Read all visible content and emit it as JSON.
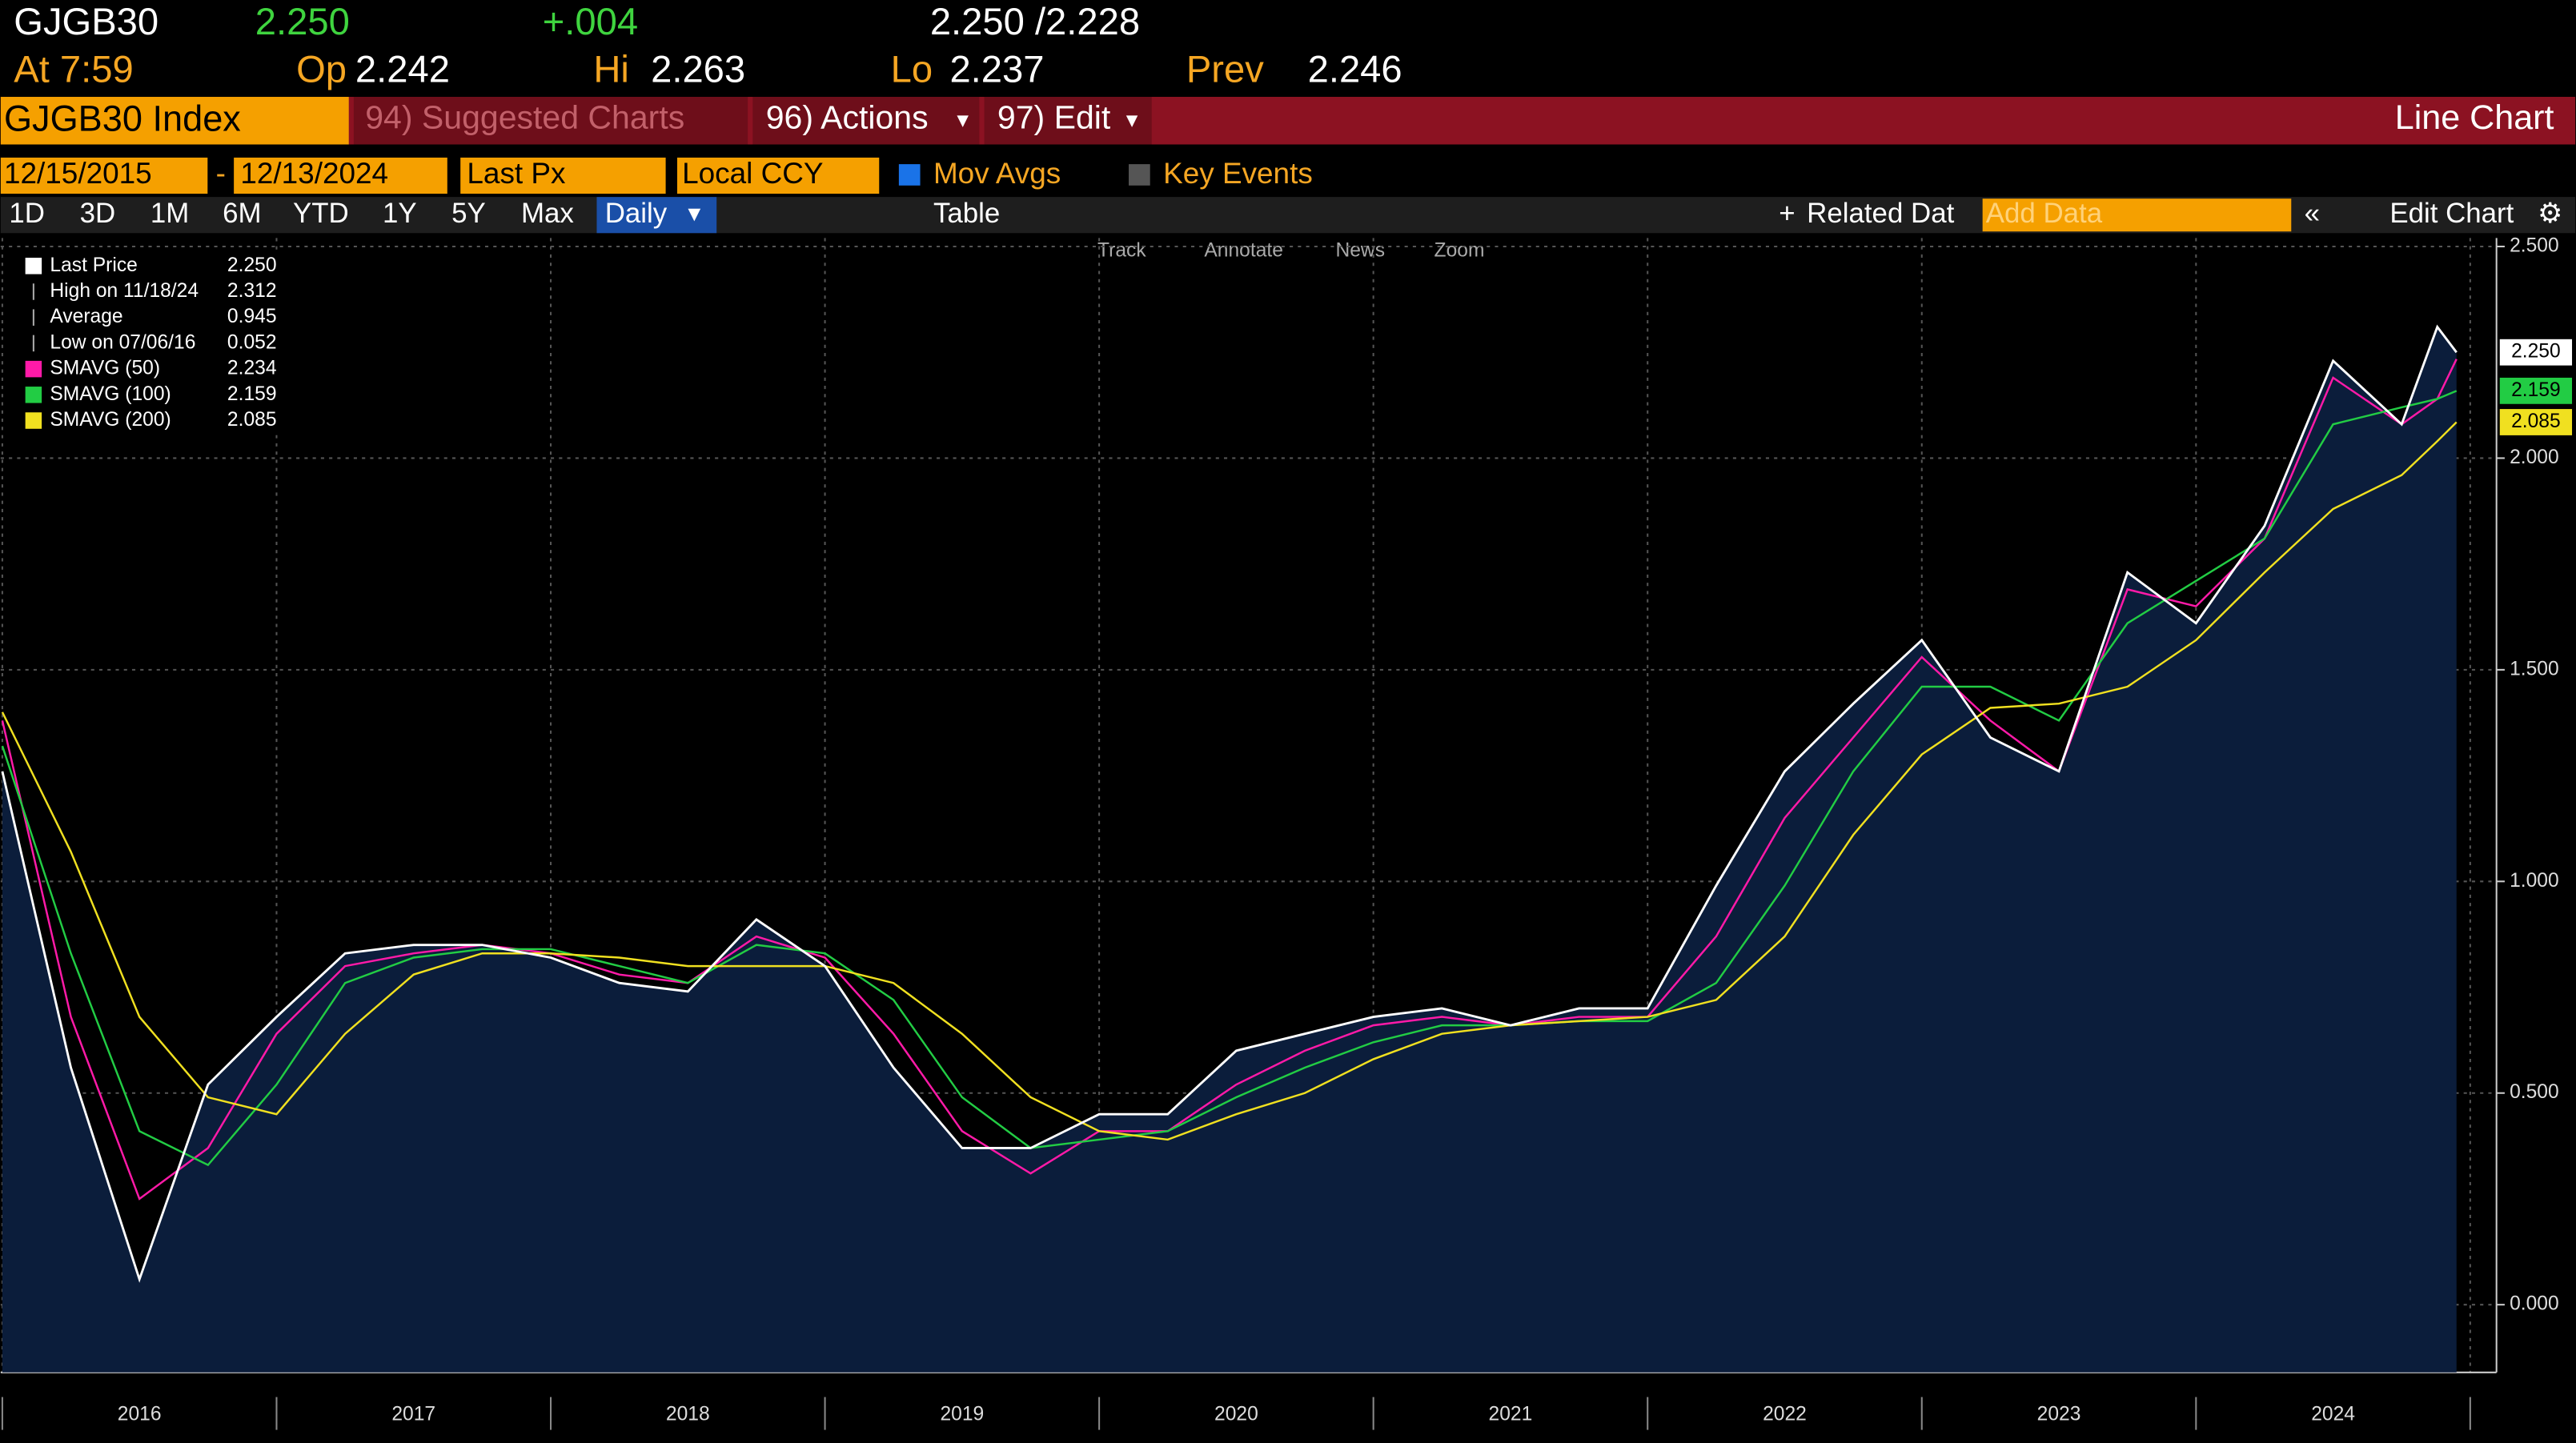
{
  "header": {
    "ticker": "GJGB30",
    "last": "2.250",
    "change": "+.004",
    "bid_ask": "2.250 /2.228",
    "time": "At 7:59",
    "open": {
      "label": "Op",
      "value": "2.242"
    },
    "high": {
      "label": "Hi",
      "value": "2.263"
    },
    "low": {
      "label": "Lo",
      "value": "2.237"
    },
    "prev": {
      "label": "Prev",
      "value": "2.246"
    }
  },
  "menu": {
    "security": "GJGB30 Index",
    "items": [
      "94) Suggested Charts",
      "96) Actions",
      "97) Edit"
    ],
    "view": "Line Chart"
  },
  "toolbar": {
    "start_date": "12/15/2015",
    "separator": "-",
    "end_date": "12/13/2024",
    "field": "Last Px",
    "currency": "Local CCY",
    "mov_avgs": "Mov Avgs",
    "key_events": "Key Events"
  },
  "periods": [
    "1D",
    "3D",
    "1M",
    "6M",
    "YTD",
    "1Y",
    "5Y",
    "Max"
  ],
  "frequency": "Daily",
  "table": "Table",
  "related": "Related Dat",
  "add_data": "Add Data",
  "edit_chart": "Edit Chart",
  "chart_tools": [
    "Track",
    "Annotate",
    "News",
    "Zoom"
  ],
  "chart_data": {
    "type": "line",
    "x": [
      2016,
      2016.25,
      2016.5,
      2016.75,
      2017,
      2017.25,
      2017.5,
      2017.75,
      2018,
      2018.25,
      2018.5,
      2018.75,
      2019,
      2019.25,
      2019.5,
      2019.75,
      2020,
      2020.25,
      2020.5,
      2020.75,
      2021,
      2021.25,
      2021.5,
      2021.75,
      2022,
      2022.25,
      2022.5,
      2022.75,
      2023,
      2023.25,
      2023.5,
      2023.75,
      2024,
      2024.25,
      2024.5,
      2024.75,
      2024.88,
      2024.95
    ],
    "series": [
      {
        "name": "Last Price",
        "color": "#ffffff",
        "legend_value": "2.250",
        "axis_tag": true,
        "area": "#0b1d3b",
        "values": [
          1.26,
          0.56,
          0.06,
          0.52,
          0.68,
          0.83,
          0.85,
          0.85,
          0.82,
          0.76,
          0.74,
          0.91,
          0.8,
          0.56,
          0.37,
          0.37,
          0.45,
          0.45,
          0.6,
          0.64,
          0.68,
          0.7,
          0.66,
          0.7,
          0.7,
          0.99,
          1.26,
          1.42,
          1.57,
          1.34,
          1.26,
          1.73,
          1.61,
          1.84,
          2.23,
          2.08,
          2.31,
          2.25
        ]
      },
      {
        "name": "SMAVG (50)",
        "color": "#ff1aa8",
        "legend_value": "2.234",
        "axis_tag": false,
        "values": [
          1.38,
          0.68,
          0.25,
          0.37,
          0.64,
          0.8,
          0.83,
          0.85,
          0.83,
          0.78,
          0.76,
          0.87,
          0.82,
          0.64,
          0.41,
          0.31,
          0.41,
          0.41,
          0.52,
          0.6,
          0.66,
          0.68,
          0.66,
          0.68,
          0.68,
          0.87,
          1.15,
          1.34,
          1.53,
          1.38,
          1.26,
          1.69,
          1.65,
          1.81,
          2.19,
          2.08,
          2.14,
          2.234
        ]
      },
      {
        "name": "SMAVG (100)",
        "color": "#22cc44",
        "legend_value": "2.159",
        "axis_tag": true,
        "values": [
          1.32,
          0.83,
          0.41,
          0.33,
          0.52,
          0.76,
          0.82,
          0.84,
          0.84,
          0.8,
          0.76,
          0.85,
          0.83,
          0.72,
          0.49,
          0.37,
          0.39,
          0.41,
          0.49,
          0.56,
          0.62,
          0.66,
          0.66,
          0.67,
          0.67,
          0.76,
          0.99,
          1.26,
          1.46,
          1.46,
          1.38,
          1.61,
          1.71,
          1.81,
          2.08,
          2.12,
          2.14,
          2.159
        ]
      },
      {
        "name": "SMAVG (200)",
        "color": "#f0e020",
        "legend_value": "2.085",
        "axis_tag": true,
        "values": [
          1.4,
          1.07,
          0.68,
          0.49,
          0.45,
          0.64,
          0.78,
          0.83,
          0.83,
          0.82,
          0.8,
          0.8,
          0.8,
          0.76,
          0.64,
          0.49,
          0.41,
          0.39,
          0.45,
          0.5,
          0.58,
          0.64,
          0.66,
          0.67,
          0.68,
          0.72,
          0.87,
          1.11,
          1.3,
          1.41,
          1.42,
          1.46,
          1.57,
          1.73,
          1.88,
          1.96,
          2.04,
          2.085
        ]
      }
    ],
    "stats": [
      {
        "label": "High on 11/18/24",
        "value": "2.312"
      },
      {
        "label": "Average",
        "value": "0.945"
      },
      {
        "label": "Low on 07/06/16",
        "value": "0.052"
      }
    ],
    "xlim": [
      2016,
      2025
    ],
    "xticks": [
      2016,
      2017,
      2018,
      2019,
      2020,
      2021,
      2022,
      2023,
      2024,
      2025
    ],
    "ylim": [
      -0.16,
      2.52
    ],
    "yticks": [
      {
        "value": 0,
        "label": "0.000"
      },
      {
        "value": 0.5,
        "label": "0.500"
      },
      {
        "value": 1,
        "label": "1.000"
      },
      {
        "value": 1.5,
        "label": "1.500"
      },
      {
        "value": 2,
        "label": "2.000"
      },
      {
        "value": 2.5,
        "label": "2.500"
      }
    ],
    "grid": true
  }
}
